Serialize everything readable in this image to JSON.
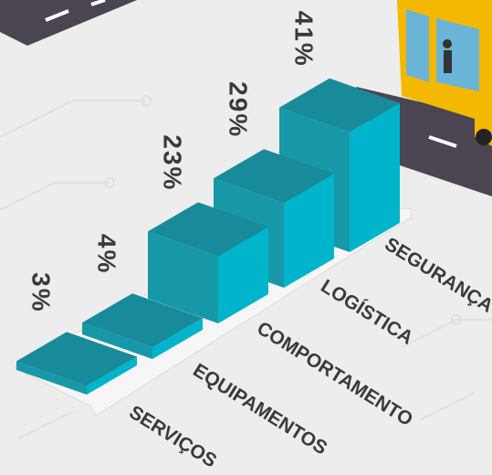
{
  "chart_data": {
    "type": "bar3d",
    "categories": [
      "SERVIÇOS",
      "EQUIPAMENTOS",
      "COMPORTAMENTO",
      "LOGÍSTICA",
      "SEGURANÇA"
    ],
    "values": [
      3,
      4,
      23,
      29,
      41
    ],
    "value_labels": [
      "3%",
      "4%",
      "23%",
      "29%",
      "41%"
    ],
    "color": "#00b4cc"
  }
}
